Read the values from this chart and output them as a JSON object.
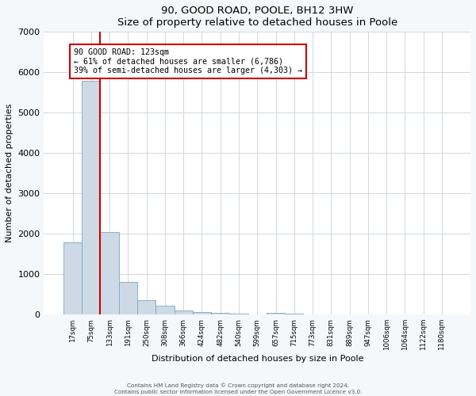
{
  "title": "90, GOOD ROAD, POOLE, BH12 3HW",
  "subtitle": "Size of property relative to detached houses in Poole",
  "xlabel": "Distribution of detached houses by size in Poole",
  "ylabel": "Number of detached properties",
  "bar_labels": [
    "17sqm",
    "75sqm",
    "133sqm",
    "191sqm",
    "250sqm",
    "308sqm",
    "366sqm",
    "424sqm",
    "482sqm",
    "540sqm",
    "599sqm",
    "657sqm",
    "715sqm",
    "773sqm",
    "831sqm",
    "889sqm",
    "947sqm",
    "1006sqm",
    "1064sqm",
    "1122sqm",
    "1180sqm"
  ],
  "bar_values": [
    1780,
    5780,
    2050,
    800,
    360,
    220,
    100,
    55,
    40,
    30,
    0,
    35,
    20,
    0,
    0,
    0,
    0,
    0,
    0,
    0,
    0
  ],
  "bar_color": "#cdd9e5",
  "bar_edge_color": "#7ba7c4",
  "ylim": [
    0,
    7000
  ],
  "yticks": [
    0,
    1000,
    2000,
    3000,
    4000,
    5000,
    6000,
    7000
  ],
  "red_line_color": "#cc0000",
  "annotation_title": "90 GOOD ROAD: 123sqm",
  "annotation_line1": "← 61% of detached houses are smaller (6,786)",
  "annotation_line2": "39% of semi-detached houses are larger (4,303) →",
  "annotation_box_color": "#ffffff",
  "annotation_box_edge": "#cc0000",
  "footer1": "Contains HM Land Registry data © Crown copyright and database right 2024.",
  "footer2": "Contains public sector information licensed under the Open Government Licence v3.0.",
  "plot_background": "#ffffff",
  "fig_background": "#f5f8fa",
  "grid_color": "#d0d8e0"
}
